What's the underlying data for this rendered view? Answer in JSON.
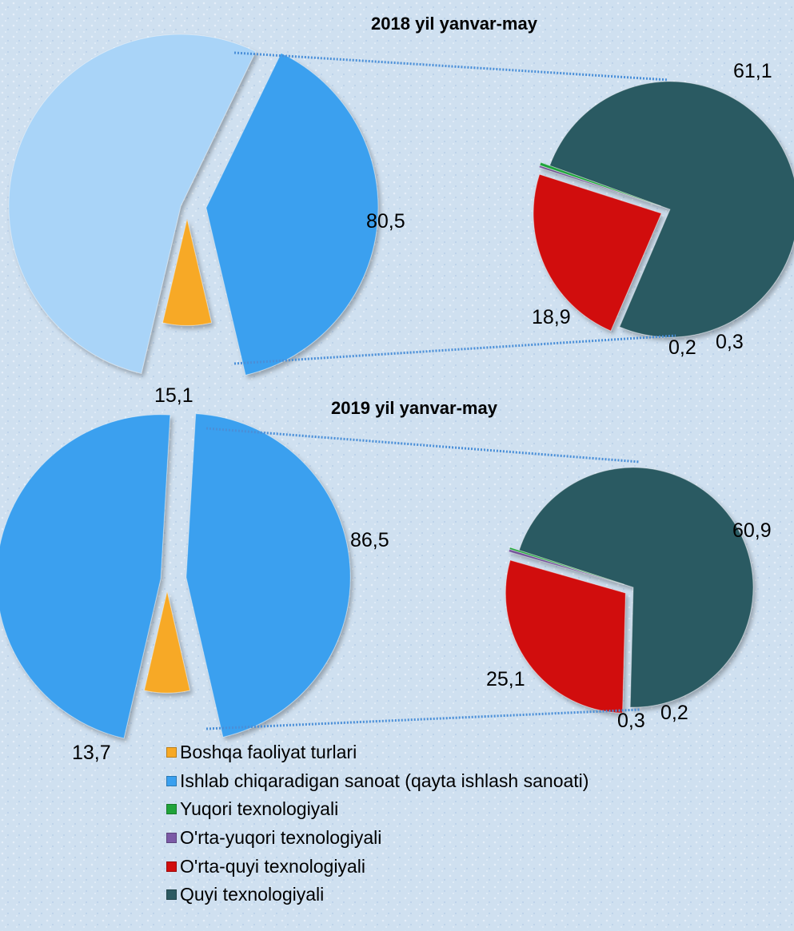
{
  "colors": {
    "background": "#cfe0f0",
    "boshqa": "#f7a925",
    "ishlab": "#3aa0ef",
    "ishlab_light": "#a9d4f8",
    "yuqori": "#1fa33a",
    "orta_yuqori": "#7b5aa6",
    "orta_quyi": "#d10d0d",
    "quyi": "#2c5a62",
    "connector": "#4a8fd8"
  },
  "chart_data": [
    {
      "type": "pie",
      "title": "2018 yil yanvar-may",
      "main_pie": {
        "slices": [
          {
            "name": "Ishlab chiqaradigan sanoat (qayta ishlash sanoati)",
            "value": 80.5,
            "label": "80,5"
          },
          {
            "name": "Boshqa faoliyat turlari",
            "value": 15.1,
            "label": "15,1"
          }
        ]
      },
      "sub_pie": {
        "slices": [
          {
            "name": "Quyi texnologiyali",
            "value": 61.1,
            "label": "61,1"
          },
          {
            "name": "O'rta-quyi texnologiyali",
            "value": 18.9,
            "label": "18,9"
          },
          {
            "name": "O'rta-yuqori texnologiyali",
            "value": 0.2,
            "label": "0,2"
          },
          {
            "name": "Yuqori texnologiyali",
            "value": 0.3,
            "label": "0,3"
          }
        ]
      }
    },
    {
      "type": "pie",
      "title": "2019 yil yanvar-may",
      "main_pie": {
        "slices": [
          {
            "name": "Ishlab chiqaradigan sanoat (qayta ishlash sanoati)",
            "value": 86.5,
            "label": "86,5"
          },
          {
            "name": "Boshqa faoliyat turlari",
            "value": 13.7,
            "label": "13,7"
          }
        ]
      },
      "sub_pie": {
        "slices": [
          {
            "name": "Quyi texnologiyali",
            "value": 60.9,
            "label": "60,9"
          },
          {
            "name": "O'rta-quyi texnologiyali",
            "value": 25.1,
            "label": "25,1"
          },
          {
            "name": "O'rta-yuqori texnologiyali",
            "value": 0.3,
            "label": "0,3"
          },
          {
            "name": "Yuqori texnologiyali",
            "value": 0.2,
            "label": "0,2"
          }
        ]
      }
    }
  ],
  "legend": {
    "placement": "bottom",
    "items": [
      {
        "label": "Boshqa faoliyat turlari",
        "color": "#f7a925"
      },
      {
        "label": "Ishlab chiqaradigan sanoat (qayta ishlash sanoati)",
        "color": "#3aa0ef"
      },
      {
        "label": "Yuqori texnologiyali",
        "color": "#1fa33a"
      },
      {
        "label": "O'rta-yuqori texnologiyali",
        "color": "#7b5aa6"
      },
      {
        "label": "O'rta-quyi texnologiyali",
        "color": "#d10d0d"
      },
      {
        "label": "Quyi texnologiyali",
        "color": "#2c5a62"
      }
    ]
  }
}
